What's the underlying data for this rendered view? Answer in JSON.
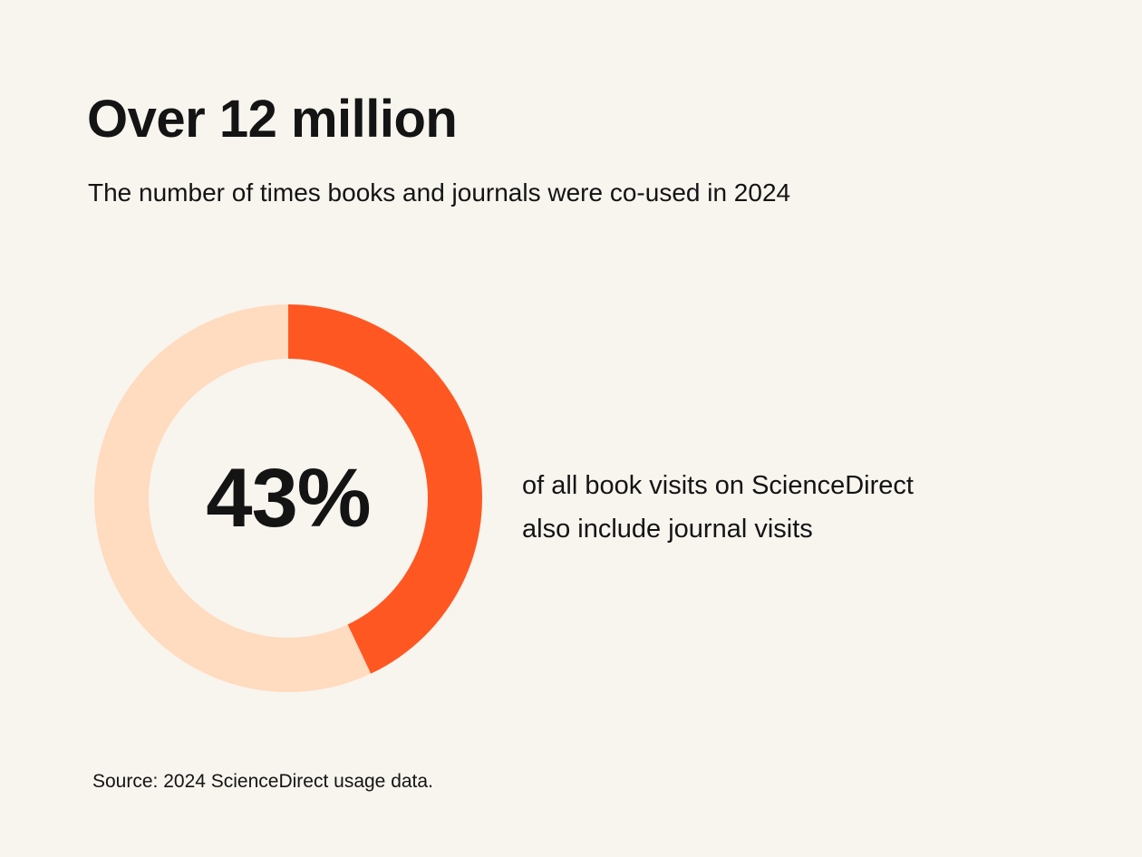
{
  "header": {
    "title": "Over 12 million",
    "subtitle": "The number of times books and journals were co-used in 2024"
  },
  "chart_data": {
    "type": "pie",
    "donut": true,
    "slices": [
      {
        "label": "",
        "value": 43,
        "color": "#ff5722"
      },
      {
        "label": "",
        "value": 57,
        "color": "#ffdbbf"
      }
    ],
    "center_label": "43%"
  },
  "caption": {
    "line1": "of all book visits on ScienceDirect",
    "line2": "also include journal visits"
  },
  "footer": {
    "source": "Source: 2024 ScienceDirect usage data."
  }
}
